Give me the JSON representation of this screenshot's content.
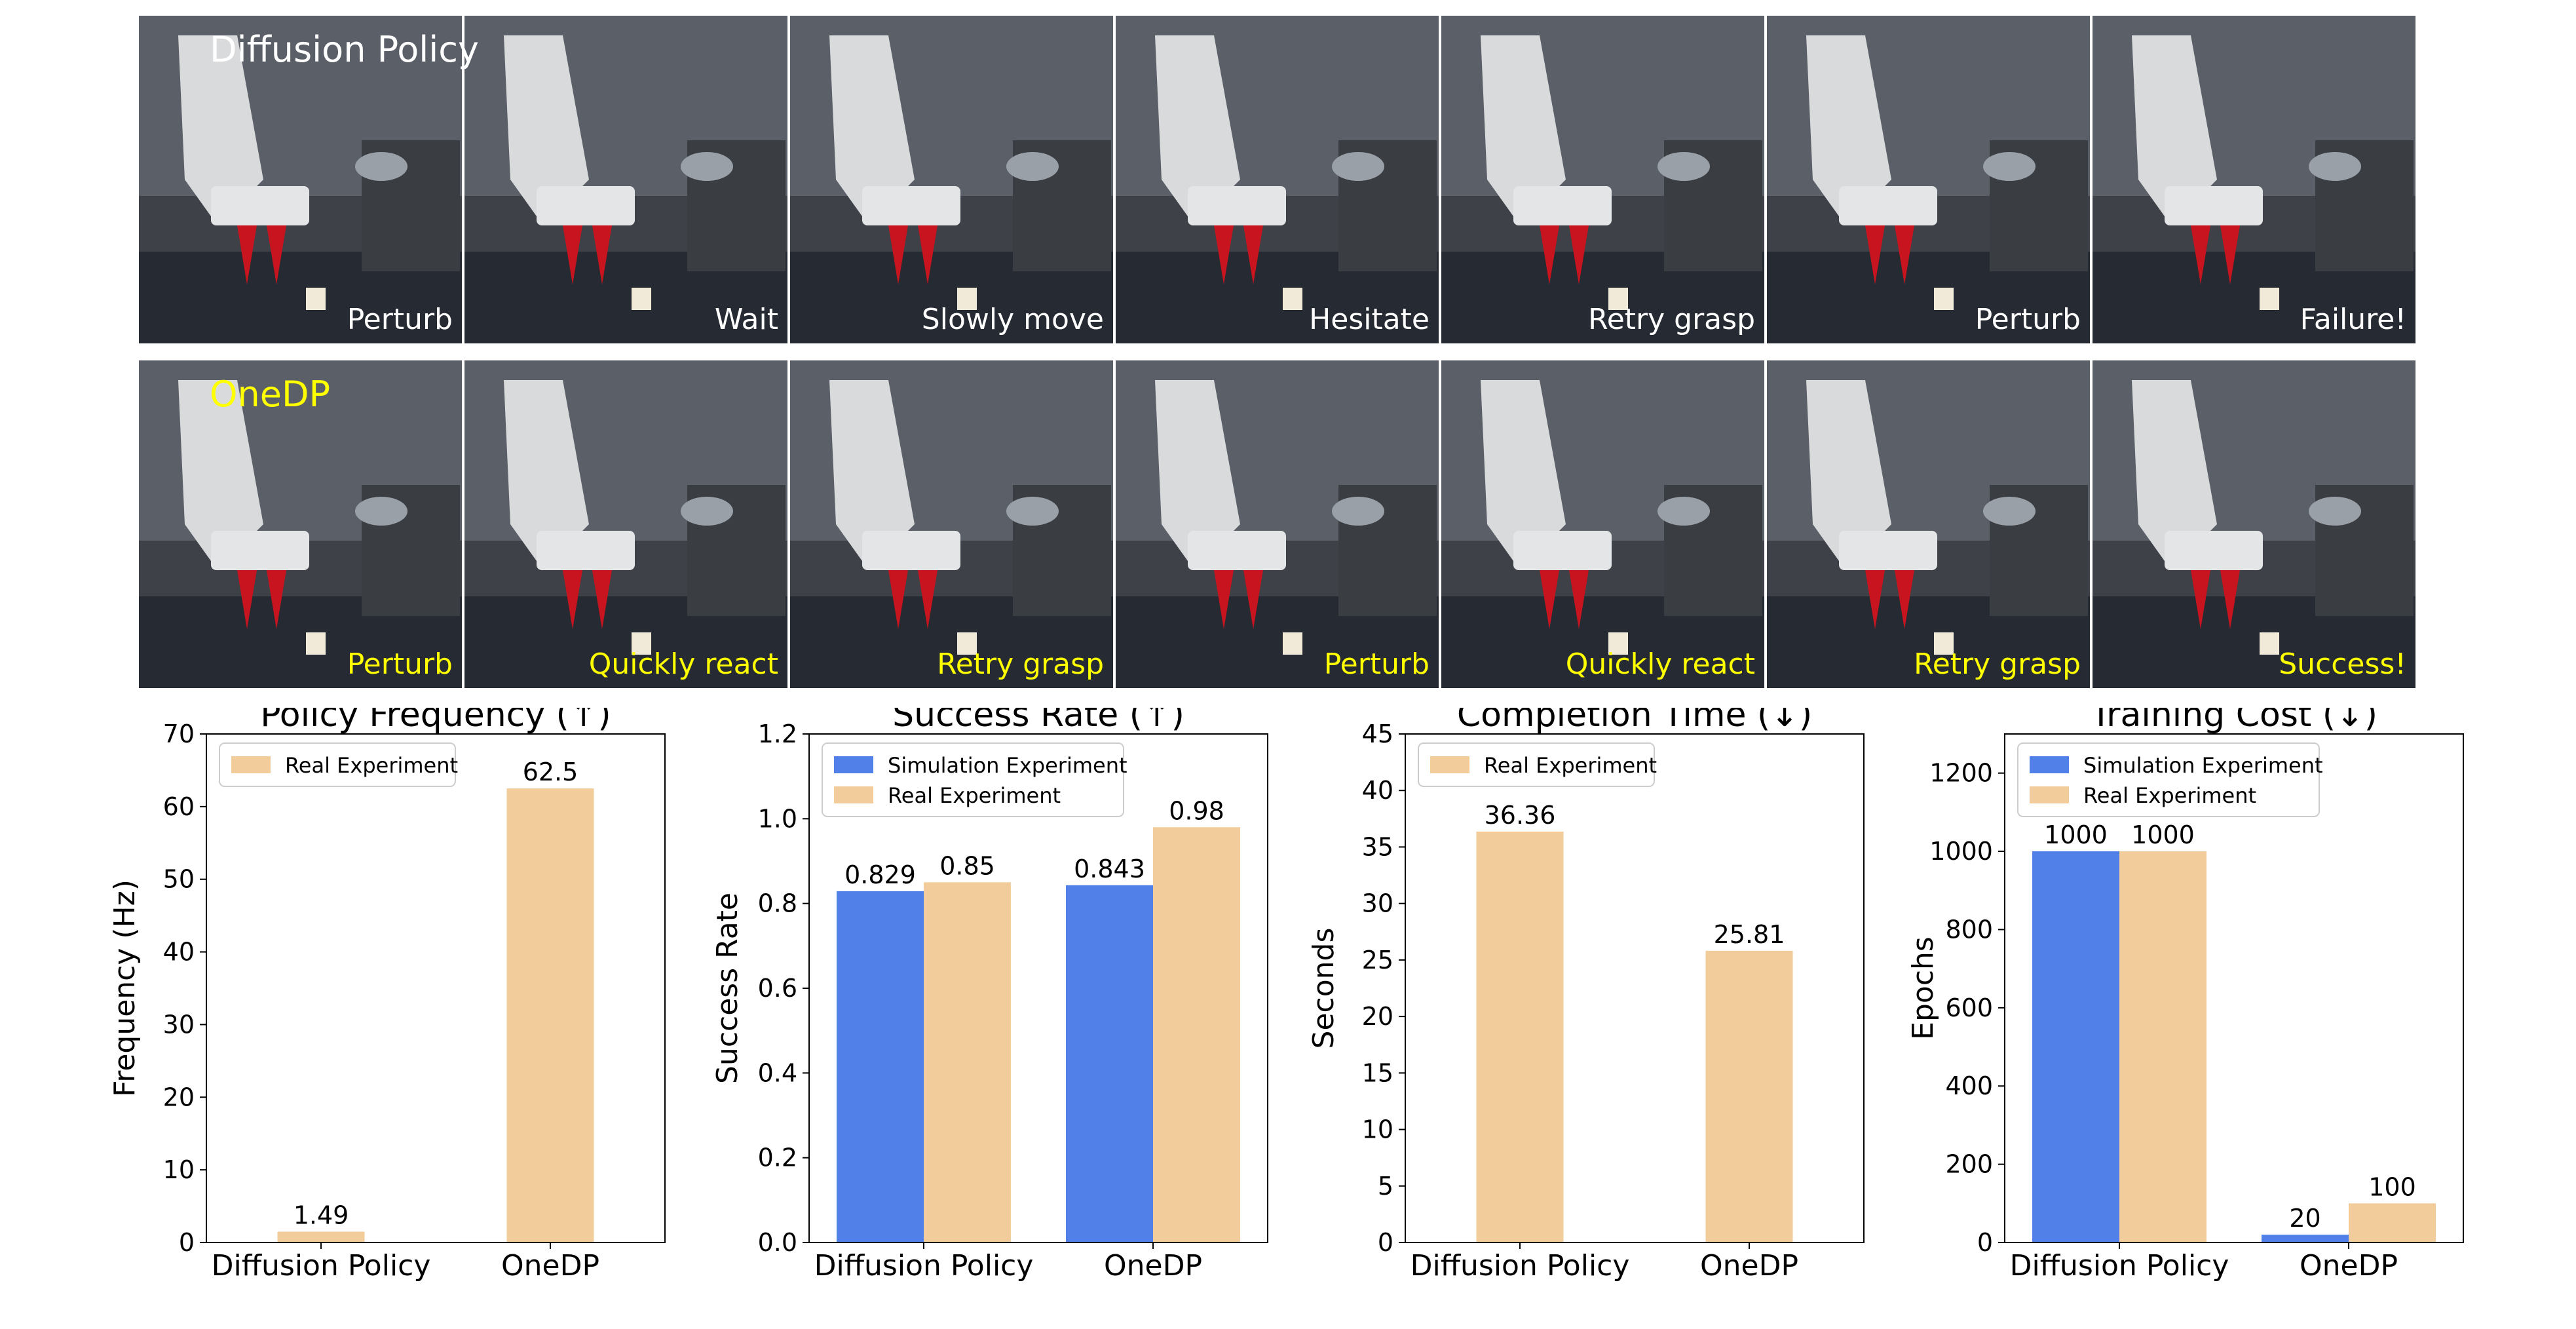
{
  "frames": {
    "rows": [
      {
        "title": "Diffusion Policy",
        "title_color": "#ffffff",
        "label_color": "#ffffff",
        "labels": [
          "Perturb",
          "Wait",
          "Slowly move",
          "Hesitate",
          "Retry grasp",
          "Perturb",
          "Failure!"
        ]
      },
      {
        "title": "OneDP",
        "title_color": "#ffff00",
        "label_color": "#ffff00",
        "labels": [
          "Perturb",
          "Quickly react",
          "Retry grasp",
          "Perturb",
          "Quickly react",
          "Retry grasp",
          "Success!"
        ]
      }
    ]
  },
  "colors": {
    "simulation": "#5080e8",
    "real": "#f2cc9a"
  },
  "chart_data": [
    {
      "type": "bar",
      "title": "Policy Frequency (↑)",
      "xlabel": "",
      "ylabel": "Frequency (Hz)",
      "categories": [
        "Diffusion Policy",
        "OneDP"
      ],
      "ylim": [
        0,
        70
      ],
      "yticks": [
        0,
        10,
        20,
        30,
        40,
        50,
        60,
        70
      ],
      "ytick_labels": [
        "0",
        "10",
        "20",
        "30",
        "40",
        "50",
        "60",
        "70"
      ],
      "legend_position": "upper-left",
      "series": [
        {
          "name": "Real Experiment",
          "color_key": "real",
          "values": [
            1.49,
            62.5
          ],
          "labels": [
            "1.49",
            "62.5"
          ]
        }
      ]
    },
    {
      "type": "bar",
      "title": "Success Rate (↑)",
      "xlabel": "",
      "ylabel": "Success Rate",
      "categories": [
        "Diffusion Policy",
        "OneDP"
      ],
      "ylim": [
        0,
        1.2
      ],
      "yticks": [
        0,
        0.2,
        0.4,
        0.6,
        0.8,
        1.0,
        1.2
      ],
      "ytick_labels": [
        "0.0",
        "0.2",
        "0.4",
        "0.6",
        "0.8",
        "1.0",
        "1.2"
      ],
      "legend_position": "upper-left",
      "series": [
        {
          "name": "Simulation Experiment",
          "color_key": "simulation",
          "values": [
            0.829,
            0.843
          ],
          "labels": [
            "0.829",
            "0.843"
          ]
        },
        {
          "name": "Real Experiment",
          "color_key": "real",
          "values": [
            0.85,
            0.98
          ],
          "labels": [
            "0.85",
            "0.98"
          ]
        }
      ]
    },
    {
      "type": "bar",
      "title": "Completion Time (↓)",
      "xlabel": "",
      "ylabel": "Seconds",
      "categories": [
        "Diffusion Policy",
        "OneDP"
      ],
      "ylim": [
        0,
        45
      ],
      "yticks": [
        0,
        5,
        10,
        15,
        20,
        25,
        30,
        35,
        40,
        45
      ],
      "ytick_labels": [
        "0",
        "5",
        "10",
        "15",
        "20",
        "25",
        "30",
        "35",
        "40",
        "45"
      ],
      "legend_position": "upper-left",
      "series": [
        {
          "name": "Real Experiment",
          "color_key": "real",
          "values": [
            36.36,
            25.81
          ],
          "labels": [
            "36.36",
            "25.81"
          ]
        }
      ]
    },
    {
      "type": "bar",
      "title": "Training Cost (↓)",
      "xlabel": "",
      "ylabel": "Epochs",
      "categories": [
        "Diffusion Policy",
        "OneDP"
      ],
      "ylim": [
        0,
        1300
      ],
      "yticks": [
        0,
        200,
        400,
        600,
        800,
        1000,
        1200
      ],
      "ytick_labels": [
        "0",
        "200",
        "400",
        "600",
        "800",
        "1000",
        "1200"
      ],
      "legend_position": "upper-left",
      "series": [
        {
          "name": "Simulation Experiment",
          "color_key": "simulation",
          "values": [
            1000,
            20
          ],
          "labels": [
            "1000",
            "20"
          ]
        },
        {
          "name": "Real Experiment",
          "color_key": "real",
          "values": [
            1000,
            100
          ],
          "labels": [
            "1000",
            "100"
          ]
        }
      ]
    }
  ]
}
